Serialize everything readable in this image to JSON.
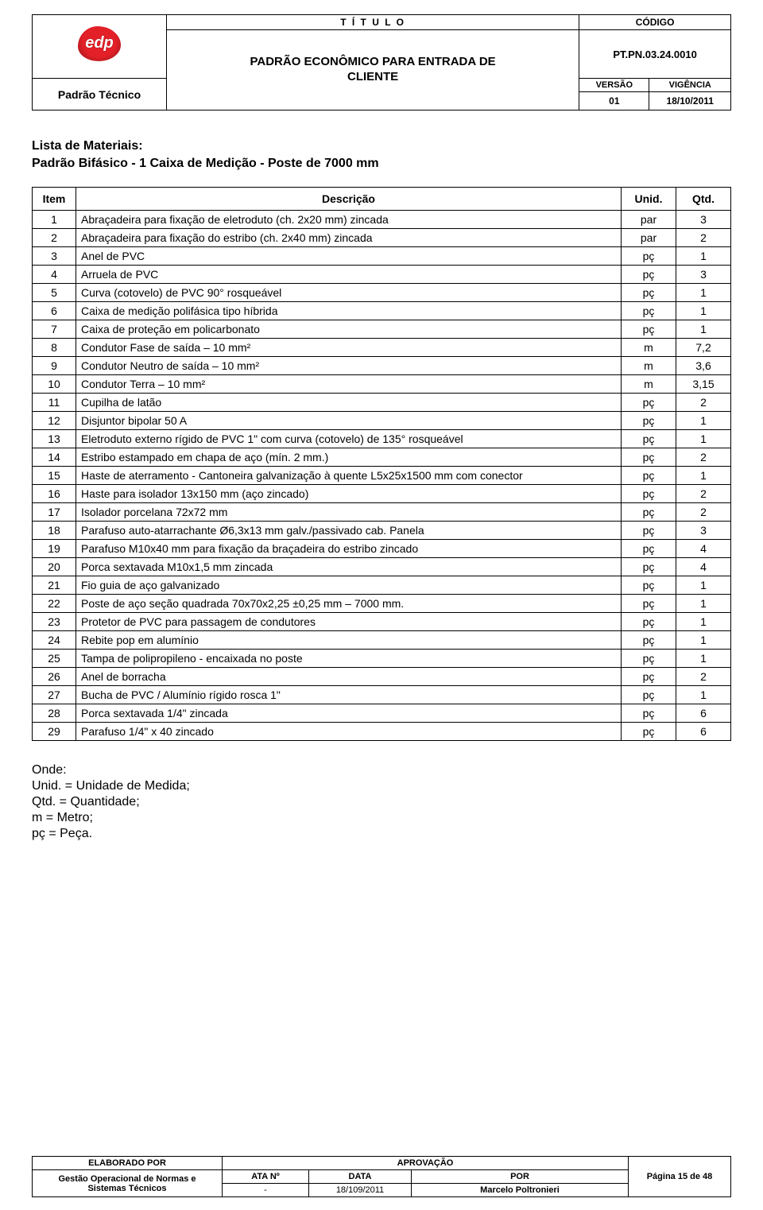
{
  "header": {
    "titulo_lbl": "T Í T U L O",
    "codigo_lbl": "CÓDIGO",
    "padrao_tecnico": "Padrão Técnico",
    "main_title_l1": "PADRÃO ECONÔMICO PARA ENTRADA DE",
    "main_title_l2": "CLIENTE",
    "codigo_val": "PT.PN.03.24.0010",
    "versao_lbl": "VERSÃO",
    "vigencia_lbl": "VIGÊNCIA",
    "versao_val": "01",
    "vigencia_val": "18/10/2011",
    "logo_text": "edp"
  },
  "list": {
    "title": "Lista de Materiais:",
    "subtitle": "Padrão Bifásico - 1 Caixa de Medição - Poste de 7000 mm"
  },
  "table": {
    "cols": {
      "item": "Item",
      "desc": "Descrição",
      "unid": "Unid.",
      "qtd": "Qtd."
    },
    "rows": [
      {
        "i": "1",
        "d": "Abraçadeira para fixação de eletroduto (ch. 2x20 mm) zincada",
        "u": "par",
        "q": "3"
      },
      {
        "i": "2",
        "d": "Abraçadeira para fixação do estribo (ch. 2x40 mm) zincada",
        "u": "par",
        "q": "2"
      },
      {
        "i": "3",
        "d": "Anel de PVC",
        "u": "pç",
        "q": "1"
      },
      {
        "i": "4",
        "d": "Arruela de PVC",
        "u": "pç",
        "q": "3"
      },
      {
        "i": "5",
        "d": "Curva (cotovelo) de PVC 90° rosqueável",
        "u": "pç",
        "q": "1"
      },
      {
        "i": "6",
        "d": "Caixa de medição polifásica tipo híbrida",
        "u": "pç",
        "q": "1"
      },
      {
        "i": "7",
        "d": "Caixa de proteção em policarbonato",
        "u": "pç",
        "q": "1"
      },
      {
        "i": "8",
        "d": "Condutor Fase de saída – 10 mm²",
        "u": "m",
        "q": "7,2"
      },
      {
        "i": "9",
        "d": "Condutor Neutro de saída – 10 mm²",
        "u": "m",
        "q": "3,6"
      },
      {
        "i": "10",
        "d": "Condutor Terra – 10 mm²",
        "u": "m",
        "q": "3,15"
      },
      {
        "i": "11",
        "d": "Cupilha de latão",
        "u": "pç",
        "q": "2"
      },
      {
        "i": "12",
        "d": "Disjuntor bipolar 50 A",
        "u": "pç",
        "q": "1"
      },
      {
        "i": "13",
        "d": "Eletroduto externo rígido de PVC 1\" com curva (cotovelo) de 135° rosqueável",
        "u": "pç",
        "q": "1"
      },
      {
        "i": "14",
        "d": "Estribo estampado em chapa de aço (mín. 2 mm.)",
        "u": "pç",
        "q": "2"
      },
      {
        "i": "15",
        "d": "Haste de aterramento - Cantoneira galvanização à quente L5x25x1500 mm com conector",
        "u": "pç",
        "q": "1"
      },
      {
        "i": "16",
        "d": "Haste para isolador 13x150 mm (aço zincado)",
        "u": "pç",
        "q": "2"
      },
      {
        "i": "17",
        "d": "Isolador porcelana 72x72 mm",
        "u": "pç",
        "q": "2"
      },
      {
        "i": "18",
        "d": "Parafuso auto-atarrachante Ø6,3x13 mm galv./passivado cab. Panela",
        "u": "pç",
        "q": "3"
      },
      {
        "i": "19",
        "d": "Parafuso M10x40 mm para fixação da braçadeira do estribo zincado",
        "u": "pç",
        "q": "4"
      },
      {
        "i": "20",
        "d": "Porca sextavada M10x1,5 mm zincada",
        "u": "pç",
        "q": "4"
      },
      {
        "i": "21",
        "d": "Fio guia de aço galvanizado",
        "u": "pç",
        "q": "1"
      },
      {
        "i": "22",
        "d": "Poste de aço seção quadrada 70x70x2,25 ±0,25 mm – 7000 mm.",
        "u": "pç",
        "q": "1"
      },
      {
        "i": "23",
        "d": "Protetor de PVC para passagem de condutores",
        "u": "pç",
        "q": "1"
      },
      {
        "i": "24",
        "d": "Rebite pop em alumínio",
        "u": "pç",
        "q": "1"
      },
      {
        "i": "25",
        "d": "Tampa de polipropileno - encaixada no poste",
        "u": "pç",
        "q": "1"
      },
      {
        "i": "26",
        "d": "Anel de borracha",
        "u": "pç",
        "q": "2"
      },
      {
        "i": "27",
        "d": "Bucha de PVC / Alumínio rígido rosca 1\"",
        "u": "pç",
        "q": "1"
      },
      {
        "i": "28",
        "d": "Porca sextavada 1/4\" zincada",
        "u": "pç",
        "q": "6"
      },
      {
        "i": "29",
        "d": "Parafuso 1/4\" x 40 zincado",
        "u": "pç",
        "q": "6"
      }
    ]
  },
  "onde": {
    "title": "Onde:",
    "l1": "Unid. = Unidade de Medida;",
    "l2": "Qtd. = Quantidade;",
    "l3": "m = Metro;",
    "l4": "pç = Peça."
  },
  "footer": {
    "elab_lbl": "ELABORADO POR",
    "aprov_lbl": "APROVAÇÃO",
    "elab_val_l1": "Gestão Operacional de Normas e",
    "elab_val_l2": "Sistemas Técnicos",
    "ata_lbl": "ATA Nº",
    "data_lbl": "DATA",
    "por_lbl": "POR",
    "ata_val": "-",
    "data_val": "18/109/2011",
    "por_val": "Marcelo Poltronieri",
    "page": "Página 15 de 48"
  }
}
